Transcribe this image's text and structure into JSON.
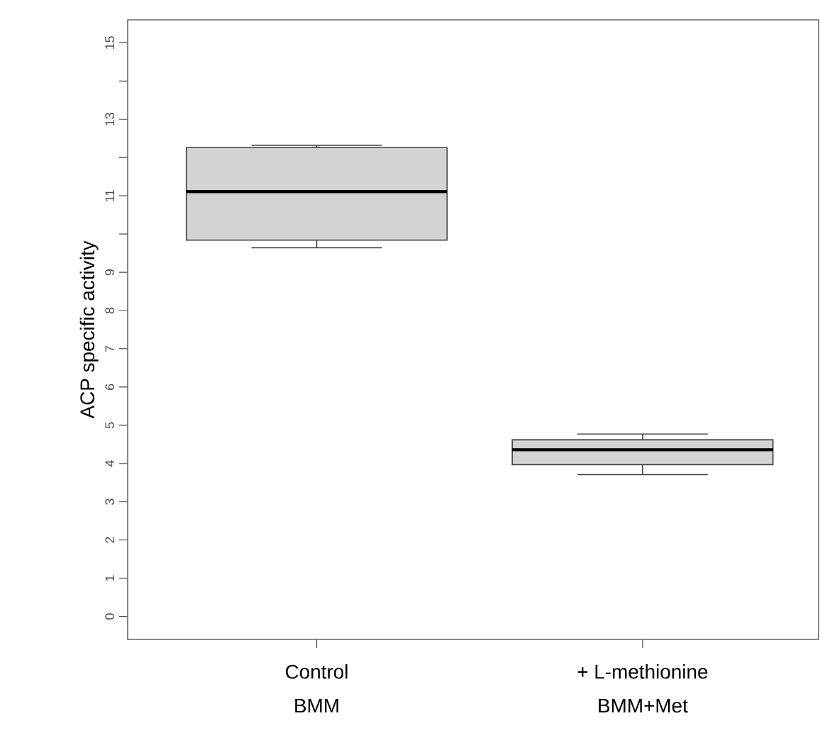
{
  "chart_data": {
    "type": "box",
    "ylabel": "ACP specific activity",
    "categories": [
      "Control BMM",
      "+ L-methionine BMM+Met"
    ],
    "boxes": [
      {
        "low": 9.64,
        "q1": 9.84,
        "median": 11.11,
        "q3": 12.26,
        "high": 12.32
      },
      {
        "low": 3.71,
        "q1": 3.97,
        "median": 4.36,
        "q3": 4.62,
        "high": 4.77
      }
    ],
    "color": "#d3d3d3",
    "ylim": [
      -0.6,
      15.6
    ],
    "yticks": [
      0,
      1,
      2,
      3,
      4,
      5,
      6,
      7,
      8,
      9,
      {
        "value": 10,
        "label": null
      },
      11,
      {
        "value": 12,
        "label": null
      },
      13,
      {
        "value": 14,
        "label": null
      },
      15
    ],
    "grid": false
  }
}
